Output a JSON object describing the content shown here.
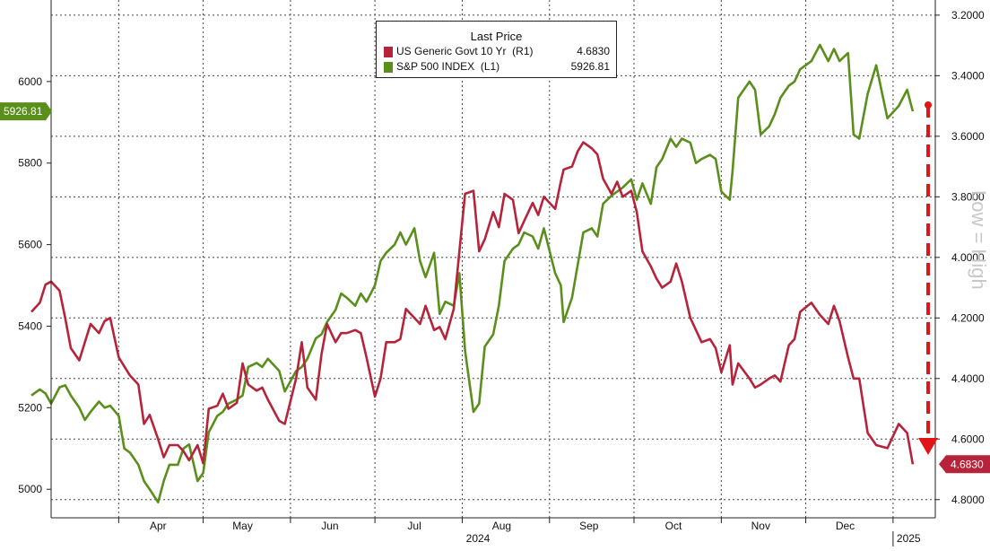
{
  "chart_data": {
    "type": "line",
    "x_axis": {
      "month_labels": [
        "Apr",
        "May",
        "Jun",
        "Jul",
        "Aug",
        "Sep",
        "Oct",
        "Nov",
        "Dec"
      ],
      "year_labels": [
        "2024",
        "2025"
      ]
    },
    "left_axis": {
      "ylim": [
        4930,
        6200
      ],
      "ticks": [
        5000,
        5200,
        5400,
        5600,
        5800,
        6000
      ]
    },
    "right_axis": {
      "ylim": [
        4.86,
        3.15
      ],
      "inverted": true,
      "ticks": [
        "3.2000",
        "3.4000",
        "3.6000",
        "3.8000",
        "4.0000",
        "4.2000",
        "4.4000",
        "4.6000",
        "4.8000"
      ],
      "label": "Low = High"
    },
    "grid": true,
    "legend": {
      "title": "Last Price",
      "entries": [
        {
          "name": "US Generic Govt 10 Yr  (R1)",
          "value": "4.6830",
          "color": "#b5243a"
        },
        {
          "name": "S&P 500 INDEX  (L1)",
          "value": "5926.81",
          "color": "#5a8f1c"
        }
      ]
    },
    "last_value_tags": {
      "spx": "5926.81",
      "yield": "4.6830"
    },
    "series": [
      {
        "name": "S&P 500 INDEX  (L1)",
        "axis": "left",
        "color": "#5a8f1c",
        "points": [
          [
            "2024-03-01",
            5230
          ],
          [
            "2024-03-04",
            5245
          ],
          [
            "2024-03-06",
            5235
          ],
          [
            "2024-03-08",
            5210
          ],
          [
            "2024-03-11",
            5250
          ],
          [
            "2024-03-13",
            5255
          ],
          [
            "2024-03-15",
            5230
          ],
          [
            "2024-03-18",
            5200
          ],
          [
            "2024-03-20",
            5170
          ],
          [
            "2024-03-22",
            5190
          ],
          [
            "2024-03-25",
            5215
          ],
          [
            "2024-03-27",
            5200
          ],
          [
            "2024-03-29",
            5205
          ],
          [
            "2024-04-01",
            5180
          ],
          [
            "2024-04-03",
            5100
          ],
          [
            "2024-04-05",
            5090
          ],
          [
            "2024-04-08",
            5060
          ],
          [
            "2024-04-10",
            5020
          ],
          [
            "2024-04-12",
            5000
          ],
          [
            "2024-04-15",
            4968
          ],
          [
            "2024-04-17",
            5020
          ],
          [
            "2024-04-19",
            5060
          ],
          [
            "2024-04-22",
            5060
          ],
          [
            "2024-04-24",
            5100
          ],
          [
            "2024-04-26",
            5110
          ],
          [
            "2024-04-29",
            5020
          ],
          [
            "2024-05-01",
            5040
          ],
          [
            "2024-05-03",
            5140
          ],
          [
            "2024-05-06",
            5180
          ],
          [
            "2024-05-08",
            5190
          ],
          [
            "2024-05-10",
            5210
          ],
          [
            "2024-05-13",
            5220
          ],
          [
            "2024-05-15",
            5230
          ],
          [
            "2024-05-17",
            5300
          ],
          [
            "2024-05-20",
            5310
          ],
          [
            "2024-05-22",
            5300
          ],
          [
            "2024-05-24",
            5320
          ],
          [
            "2024-05-28",
            5290
          ],
          [
            "2024-05-30",
            5240
          ],
          [
            "2024-06-03",
            5290
          ],
          [
            "2024-06-05",
            5300
          ],
          [
            "2024-06-07",
            5320
          ],
          [
            "2024-06-10",
            5370
          ],
          [
            "2024-06-12",
            5380
          ],
          [
            "2024-06-14",
            5410
          ],
          [
            "2024-06-17",
            5440
          ],
          [
            "2024-06-19",
            5480
          ],
          [
            "2024-06-21",
            5470
          ],
          [
            "2024-06-24",
            5450
          ],
          [
            "2024-06-26",
            5480
          ],
          [
            "2024-06-28",
            5460
          ],
          [
            "2024-07-01",
            5500
          ],
          [
            "2024-07-03",
            5560
          ],
          [
            "2024-07-05",
            5580
          ],
          [
            "2024-07-08",
            5600
          ],
          [
            "2024-07-10",
            5630
          ],
          [
            "2024-07-12",
            5600
          ],
          [
            "2024-07-15",
            5640
          ],
          [
            "2024-07-17",
            5560
          ],
          [
            "2024-07-19",
            5520
          ],
          [
            "2024-07-22",
            5580
          ],
          [
            "2024-07-24",
            5430
          ],
          [
            "2024-07-26",
            5460
          ],
          [
            "2024-07-29",
            5450
          ],
          [
            "2024-07-31",
            5530
          ],
          [
            "2024-08-02",
            5340
          ],
          [
            "2024-08-05",
            5190
          ],
          [
            "2024-08-07",
            5210
          ],
          [
            "2024-08-09",
            5350
          ],
          [
            "2024-08-12",
            5380
          ],
          [
            "2024-08-14",
            5450
          ],
          [
            "2024-08-16",
            5560
          ],
          [
            "2024-08-19",
            5590
          ],
          [
            "2024-08-21",
            5600
          ],
          [
            "2024-08-23",
            5630
          ],
          [
            "2024-08-26",
            5620
          ],
          [
            "2024-08-28",
            5590
          ],
          [
            "2024-08-30",
            5640
          ],
          [
            "2024-09-03",
            5530
          ],
          [
            "2024-09-05",
            5500
          ],
          [
            "2024-09-06",
            5410
          ],
          [
            "2024-09-09",
            5470
          ],
          [
            "2024-09-11",
            5550
          ],
          [
            "2024-09-13",
            5630
          ],
          [
            "2024-09-16",
            5640
          ],
          [
            "2024-09-18",
            5620
          ],
          [
            "2024-09-20",
            5700
          ],
          [
            "2024-09-23",
            5720
          ],
          [
            "2024-09-25",
            5730
          ],
          [
            "2024-09-27",
            5740
          ],
          [
            "2024-09-30",
            5760
          ],
          [
            "2024-10-02",
            5710
          ],
          [
            "2024-10-04",
            5750
          ],
          [
            "2024-10-07",
            5700
          ],
          [
            "2024-10-09",
            5790
          ],
          [
            "2024-10-11",
            5810
          ],
          [
            "2024-10-14",
            5860
          ],
          [
            "2024-10-16",
            5840
          ],
          [
            "2024-10-18",
            5860
          ],
          [
            "2024-10-21",
            5850
          ],
          [
            "2024-10-23",
            5800
          ],
          [
            "2024-10-25",
            5810
          ],
          [
            "2024-10-28",
            5820
          ],
          [
            "2024-10-30",
            5810
          ],
          [
            "2024-11-01",
            5730
          ],
          [
            "2024-11-04",
            5710
          ],
          [
            "2024-11-05",
            5780
          ],
          [
            "2024-11-07",
            5960
          ],
          [
            "2024-11-11",
            6000
          ],
          [
            "2024-11-13",
            5980
          ],
          [
            "2024-11-15",
            5870
          ],
          [
            "2024-11-18",
            5890
          ],
          [
            "2024-11-20",
            5920
          ],
          [
            "2024-11-22",
            5960
          ],
          [
            "2024-11-25",
            5990
          ],
          [
            "2024-11-27",
            6000
          ],
          [
            "2024-11-29",
            6030
          ],
          [
            "2024-12-03",
            6050
          ],
          [
            "2024-12-06",
            6090
          ],
          [
            "2024-12-09",
            6050
          ],
          [
            "2024-12-11",
            6080
          ],
          [
            "2024-12-13",
            6050
          ],
          [
            "2024-12-16",
            6070
          ],
          [
            "2024-12-18",
            5870
          ],
          [
            "2024-12-20",
            5860
          ],
          [
            "2024-12-23",
            5970
          ],
          [
            "2024-12-26",
            6040
          ],
          [
            "2024-12-30",
            5910
          ],
          [
            "2025-01-03",
            5940
          ],
          [
            "2025-01-06",
            5980
          ],
          [
            "2025-01-08",
            5926.81
          ]
        ]
      },
      {
        "name": "US Generic Govt 10 Yr  (R1)",
        "axis": "right",
        "color": "#b5243a",
        "points": [
          [
            "2024-03-01",
            4.18
          ],
          [
            "2024-03-04",
            4.15
          ],
          [
            "2024-03-06",
            4.09
          ],
          [
            "2024-03-08",
            4.08
          ],
          [
            "2024-03-11",
            4.11
          ],
          [
            "2024-03-13",
            4.2
          ],
          [
            "2024-03-15",
            4.3
          ],
          [
            "2024-03-18",
            4.34
          ],
          [
            "2024-03-20",
            4.28
          ],
          [
            "2024-03-22",
            4.22
          ],
          [
            "2024-03-25",
            4.25
          ],
          [
            "2024-03-27",
            4.21
          ],
          [
            "2024-03-29",
            4.2
          ],
          [
            "2024-04-01",
            4.33
          ],
          [
            "2024-04-03",
            4.36
          ],
          [
            "2024-04-05",
            4.39
          ],
          [
            "2024-04-08",
            4.42
          ],
          [
            "2024-04-10",
            4.55
          ],
          [
            "2024-04-12",
            4.52
          ],
          [
            "2024-04-15",
            4.6
          ],
          [
            "2024-04-17",
            4.66
          ],
          [
            "2024-04-19",
            4.62
          ],
          [
            "2024-04-22",
            4.62
          ],
          [
            "2024-04-24",
            4.64
          ],
          [
            "2024-04-26",
            4.67
          ],
          [
            "2024-04-29",
            4.62
          ],
          [
            "2024-05-01",
            4.68
          ],
          [
            "2024-05-03",
            4.5
          ],
          [
            "2024-05-06",
            4.49
          ],
          [
            "2024-05-08",
            4.45
          ],
          [
            "2024-05-10",
            4.5
          ],
          [
            "2024-05-13",
            4.48
          ],
          [
            "2024-05-15",
            4.35
          ],
          [
            "2024-05-17",
            4.42
          ],
          [
            "2024-05-20",
            4.44
          ],
          [
            "2024-05-22",
            4.43
          ],
          [
            "2024-05-24",
            4.47
          ],
          [
            "2024-05-28",
            4.54
          ],
          [
            "2024-05-30",
            4.55
          ],
          [
            "2024-06-03",
            4.4
          ],
          [
            "2024-06-05",
            4.28
          ],
          [
            "2024-06-07",
            4.43
          ],
          [
            "2024-06-10",
            4.47
          ],
          [
            "2024-06-12",
            4.32
          ],
          [
            "2024-06-14",
            4.22
          ],
          [
            "2024-06-17",
            4.28
          ],
          [
            "2024-06-19",
            4.25
          ],
          [
            "2024-06-21",
            4.25
          ],
          [
            "2024-06-24",
            4.24
          ],
          [
            "2024-06-26",
            4.25
          ],
          [
            "2024-06-28",
            4.33
          ],
          [
            "2024-07-01",
            4.46
          ],
          [
            "2024-07-03",
            4.4
          ],
          [
            "2024-07-05",
            4.28
          ],
          [
            "2024-07-08",
            4.28
          ],
          [
            "2024-07-10",
            4.27
          ],
          [
            "2024-07-12",
            4.17
          ],
          [
            "2024-07-15",
            4.2
          ],
          [
            "2024-07-17",
            4.22
          ],
          [
            "2024-07-19",
            4.16
          ],
          [
            "2024-07-22",
            4.24
          ],
          [
            "2024-07-24",
            4.23
          ],
          [
            "2024-07-26",
            4.27
          ],
          [
            "2024-07-29",
            4.17
          ],
          [
            "2024-07-31",
            3.98
          ],
          [
            "2024-08-02",
            3.79
          ],
          [
            "2024-08-05",
            3.78
          ],
          [
            "2024-08-07",
            3.98
          ],
          [
            "2024-08-09",
            3.94
          ],
          [
            "2024-08-12",
            3.85
          ],
          [
            "2024-08-14",
            3.9
          ],
          [
            "2024-08-16",
            3.79
          ],
          [
            "2024-08-19",
            3.81
          ],
          [
            "2024-08-21",
            3.92
          ],
          [
            "2024-08-23",
            3.88
          ],
          [
            "2024-08-26",
            3.82
          ],
          [
            "2024-08-28",
            3.86
          ],
          [
            "2024-08-30",
            3.8
          ],
          [
            "2024-09-03",
            3.84
          ],
          [
            "2024-09-05",
            3.75
          ],
          [
            "2024-09-06",
            3.71
          ],
          [
            "2024-09-09",
            3.7
          ],
          [
            "2024-09-11",
            3.65
          ],
          [
            "2024-09-13",
            3.62
          ],
          [
            "2024-09-16",
            3.64
          ],
          [
            "2024-09-18",
            3.66
          ],
          [
            "2024-09-20",
            3.74
          ],
          [
            "2024-09-23",
            3.79
          ],
          [
            "2024-09-25",
            3.75
          ],
          [
            "2024-09-27",
            3.8
          ],
          [
            "2024-09-30",
            3.78
          ],
          [
            "2024-10-02",
            3.85
          ],
          [
            "2024-10-04",
            3.98
          ],
          [
            "2024-10-07",
            4.03
          ],
          [
            "2024-10-09",
            4.07
          ],
          [
            "2024-10-11",
            4.1
          ],
          [
            "2024-10-14",
            4.08
          ],
          [
            "2024-10-16",
            4.02
          ],
          [
            "2024-10-18",
            4.08
          ],
          [
            "2024-10-21",
            4.2
          ],
          [
            "2024-10-23",
            4.24
          ],
          [
            "2024-10-25",
            4.28
          ],
          [
            "2024-10-28",
            4.27
          ],
          [
            "2024-10-30",
            4.3
          ],
          [
            "2024-11-01",
            4.38
          ],
          [
            "2024-11-04",
            4.29
          ],
          [
            "2024-11-05",
            4.42
          ],
          [
            "2024-11-07",
            4.35
          ],
          [
            "2024-11-11",
            4.4
          ],
          [
            "2024-11-13",
            4.43
          ],
          [
            "2024-11-15",
            4.42
          ],
          [
            "2024-11-18",
            4.4
          ],
          [
            "2024-11-20",
            4.39
          ],
          [
            "2024-11-22",
            4.41
          ],
          [
            "2024-11-25",
            4.29
          ],
          [
            "2024-11-27",
            4.27
          ],
          [
            "2024-11-29",
            4.18
          ],
          [
            "2024-12-03",
            4.15
          ],
          [
            "2024-12-06",
            4.19
          ],
          [
            "2024-12-09",
            4.22
          ],
          [
            "2024-12-11",
            4.16
          ],
          [
            "2024-12-13",
            4.21
          ],
          [
            "2024-12-16",
            4.33
          ],
          [
            "2024-12-18",
            4.4
          ],
          [
            "2024-12-20",
            4.4
          ],
          [
            "2024-12-23",
            4.58
          ],
          [
            "2024-12-26",
            4.62
          ],
          [
            "2024-12-30",
            4.63
          ],
          [
            "2025-01-03",
            4.55
          ],
          [
            "2025-01-06",
            4.58
          ],
          [
            "2025-01-08",
            4.683
          ]
        ]
      }
    ]
  }
}
